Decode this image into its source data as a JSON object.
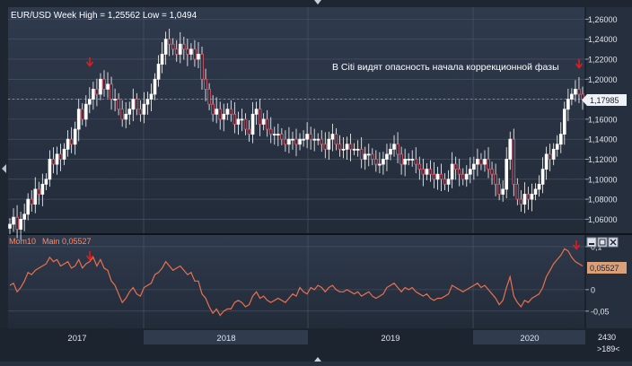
{
  "window": {
    "title": "EUR/USD Week High = 1,25562 Low = 1,0494",
    "news_annotation": "В Citi видят опасность начала коррекционной фазы",
    "counter_value": "2430",
    "counter_nav": ">189<"
  },
  "chart_data": [
    {
      "type": "candlestick",
      "title": "EUR/USD Week High = 1,25562 Low = 1,0494",
      "y_ticks": [
        "1,26000",
        "1,24000",
        "1,22000",
        "1,20000",
        "1,18000",
        "1,16000",
        "1,14000",
        "1,12000",
        "1,10000",
        "1,08000",
        "1,06000"
      ],
      "y_tick_values": [
        1.26,
        1.24,
        1.22,
        1.2,
        1.18,
        1.16,
        1.14,
        1.12,
        1.1,
        1.08,
        1.06
      ],
      "ylim": [
        1.046,
        1.272
      ],
      "high": 1.25562,
      "low": 1.0494,
      "last_price": 1.17985,
      "last_price_label": "1,17985",
      "x_labels": [
        "2017",
        "2018",
        "2019",
        "2020"
      ],
      "closes": [
        1.055,
        1.062,
        1.05,
        1.06,
        1.065,
        1.08,
        1.075,
        1.09,
        1.085,
        1.095,
        1.1,
        1.12,
        1.115,
        1.125,
        1.12,
        1.13,
        1.14,
        1.135,
        1.15,
        1.17,
        1.16,
        1.175,
        1.18,
        1.19,
        1.185,
        1.2,
        1.19,
        1.195,
        1.18,
        1.18,
        1.17,
        1.16,
        1.165,
        1.17,
        1.18,
        1.17,
        1.165,
        1.175,
        1.18,
        1.185,
        1.2,
        1.215,
        1.225,
        1.24,
        1.235,
        1.23,
        1.225,
        1.235,
        1.23,
        1.225,
        1.23,
        1.22,
        1.225,
        1.2,
        1.19,
        1.175,
        1.165,
        1.17,
        1.16,
        1.165,
        1.17,
        1.165,
        1.155,
        1.16,
        1.16,
        1.15,
        1.145,
        1.165,
        1.17,
        1.155,
        1.16,
        1.15,
        1.145,
        1.145,
        1.145,
        1.14,
        1.135,
        1.14,
        1.14,
        1.135,
        1.14,
        1.14,
        1.145,
        1.14,
        1.14,
        1.14,
        1.135,
        1.13,
        1.14,
        1.145,
        1.135,
        1.13,
        1.13,
        1.135,
        1.13,
        1.13,
        1.13,
        1.12,
        1.125,
        1.125,
        1.12,
        1.115,
        1.115,
        1.12,
        1.125,
        1.13,
        1.135,
        1.125,
        1.115,
        1.12,
        1.12,
        1.12,
        1.115,
        1.11,
        1.105,
        1.11,
        1.105,
        1.1,
        1.105,
        1.1,
        1.095,
        1.1,
        1.115,
        1.11,
        1.105,
        1.1,
        1.105,
        1.11,
        1.115,
        1.12,
        1.115,
        1.12,
        1.11,
        1.105,
        1.095,
        1.085,
        1.09,
        1.12,
        1.14,
        1.095,
        1.08,
        1.075,
        1.085,
        1.08,
        1.085,
        1.09,
        1.095,
        1.11,
        1.125,
        1.12,
        1.13,
        1.135,
        1.145,
        1.17,
        1.18,
        1.185,
        1.19,
        1.185,
        1.18
      ]
    },
    {
      "type": "line",
      "title": "Mom10  Main 0,05527",
      "indicator_name": "Mom10",
      "indicator_value": "Main 0,05527",
      "last_value_label": "0,05527",
      "y_ticks": [
        "0,1",
        "0",
        "-0,05"
      ],
      "y_tick_values": [
        0.1,
        0,
        -0.05
      ],
      "ylim": [
        -0.09,
        0.127
      ],
      "values": [
        0.01,
        0.015,
        -0.005,
        0.005,
        0.02,
        0.04,
        0.035,
        0.045,
        0.05,
        0.055,
        0.06,
        0.075,
        0.065,
        0.07,
        0.055,
        0.06,
        0.065,
        0.05,
        0.055,
        0.07,
        0.05,
        0.06,
        0.065,
        0.075,
        0.055,
        0.07,
        0.05,
        0.045,
        0.02,
        0.01,
        -0.01,
        -0.03,
        -0.02,
        -0.005,
        0.005,
        -0.01,
        -0.015,
        0.005,
        0.01,
        0.015,
        0.035,
        0.04,
        0.05,
        0.065,
        0.055,
        0.045,
        0.05,
        0.055,
        0.045,
        0.035,
        0.04,
        0.02,
        0.02,
        -0.01,
        -0.02,
        -0.04,
        -0.055,
        -0.045,
        -0.06,
        -0.05,
        -0.045,
        -0.045,
        -0.03,
        -0.025,
        -0.03,
        -0.04,
        -0.035,
        -0.015,
        -0.005,
        -0.02,
        -0.015,
        -0.025,
        -0.03,
        -0.025,
        -0.02,
        -0.025,
        -0.03,
        -0.02,
        -0.01,
        -0.015,
        0.005,
        -0.005,
        -0.01,
        0.005,
        0.0,
        0.01,
        0.005,
        -0.005,
        0.005,
        0.01,
        0.0,
        -0.005,
        -0.005,
        0.0,
        -0.005,
        -0.01,
        -0.005,
        -0.015,
        -0.01,
        -0.005,
        -0.015,
        -0.02,
        -0.015,
        -0.01,
        0.005,
        0.01,
        0.015,
        0.005,
        -0.005,
        0.005,
        0.0,
        0.005,
        -0.005,
        -0.01,
        -0.015,
        -0.01,
        -0.02,
        -0.025,
        -0.02,
        -0.02,
        -0.015,
        -0.01,
        0.01,
        0.005,
        0.0,
        -0.005,
        0.0,
        0.005,
        0.01,
        0.015,
        0.005,
        0.01,
        0.0,
        -0.01,
        -0.02,
        -0.035,
        -0.025,
        0.005,
        0.03,
        -0.015,
        -0.03,
        -0.04,
        -0.025,
        -0.03,
        -0.02,
        -0.015,
        -0.01,
        0.005,
        0.03,
        0.045,
        0.06,
        0.07,
        0.08,
        0.095,
        0.09,
        0.075,
        0.065,
        0.06,
        0.055
      ]
    }
  ],
  "colors": {
    "background": "#27303f",
    "grid": "#556075",
    "candle": "#ffffff",
    "bearish_accent": "#e25a6a",
    "momentum_line": "#e8704f",
    "marker_arrow": "#e21c1c",
    "axis_text": "#e0e4ec",
    "last_price_box": "#f0f3f7",
    "last_value_box": "#d9a07a"
  },
  "markers": [
    "down-arrow",
    "down-arrow",
    "down-arrow",
    "down-arrow"
  ]
}
